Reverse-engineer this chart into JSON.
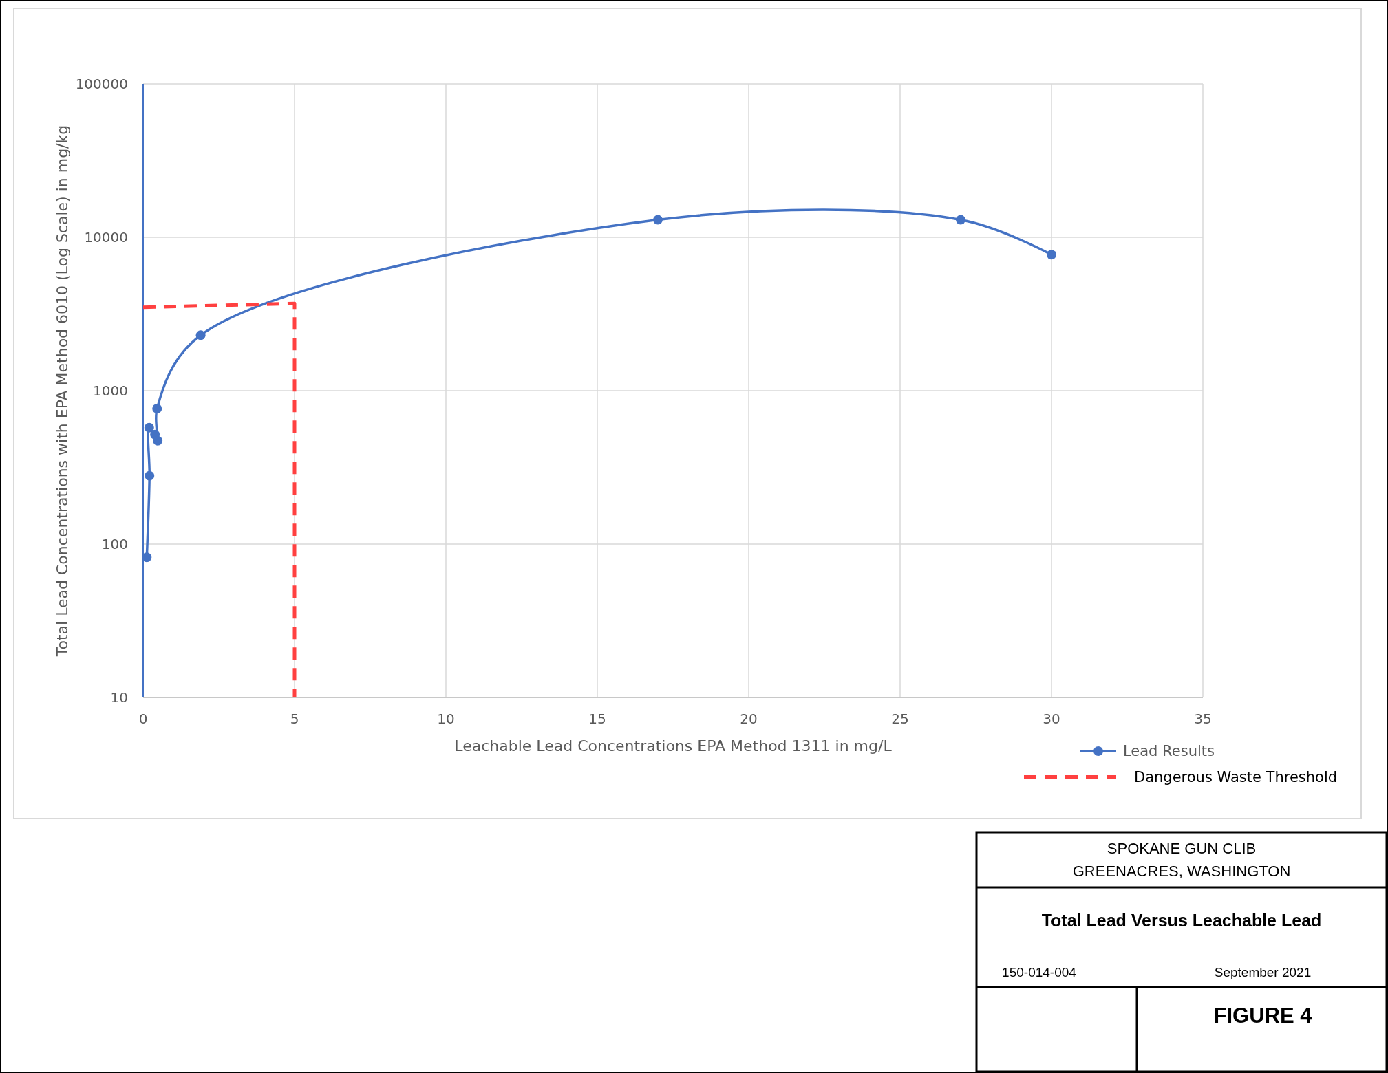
{
  "chart_data": {
    "type": "line",
    "title": "Total Lead Versus Leachable Lead",
    "xlabel": "Leachable Lead Concentrations EPA Method 1311 in mg/L",
    "ylabel": "Total Lead Concentrations with EPA Method 6010 (Log Scale) in mg/kg",
    "xlim": [
      0,
      35
    ],
    "xticks": [
      0,
      5,
      10,
      15,
      20,
      25,
      30,
      35
    ],
    "ylim": [
      10,
      100000
    ],
    "yticks": [
      10,
      100,
      1000,
      10000,
      100000
    ],
    "log": true,
    "grid": true,
    "legend": "bottom right",
    "series": [
      {
        "name": "Lead Results",
        "color": "#4472c4",
        "marker": "circle",
        "line_style": "solid",
        "x": [
          0.12,
          0.21,
          0.2,
          0.39,
          0.48,
          0.46,
          1.9,
          17,
          27,
          30
        ],
        "values": [
          82,
          279,
          574,
          518,
          472,
          765,
          2300,
          13000,
          13000,
          7700
        ]
      },
      {
        "name": "Dangerous Waste Threshold",
        "color": "#ff4040",
        "marker": "none",
        "line_style": "dashed",
        "x": [
          0,
          5,
          5
        ],
        "values": [
          3500,
          3700,
          10
        ]
      }
    ],
    "annotations": [
      "SPOKANE GUN CLIB",
      "GREENACRES, WASHINGTON",
      "150-014-004",
      "September 2021",
      "FIGURE 4"
    ]
  }
}
